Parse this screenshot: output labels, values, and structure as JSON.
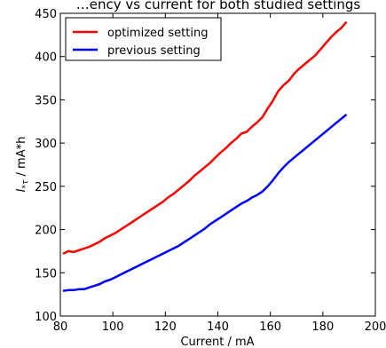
{
  "chart_data": {
    "type": "line",
    "title": "…ency vs current for both studied settings",
    "xlabel": "Current / mA",
    "ylabel": "I",
    "ylabel_subscript": "*τ",
    "ylabel_unit": " / mA*h",
    "xlim": [
      80,
      200
    ],
    "ylim": [
      100,
      450
    ],
    "xticks": [
      80,
      100,
      120,
      140,
      160,
      180,
      200
    ],
    "yticks": [
      100,
      150,
      200,
      250,
      300,
      350,
      400,
      450
    ],
    "legend_position": "top-left",
    "grid": false,
    "series": [
      {
        "name": "optimized setting",
        "color": "#ff0000",
        "x": [
          81,
          83,
          85,
          87,
          89,
          91,
          93,
          95,
          97,
          99,
          101,
          103,
          105,
          107,
          109,
          111,
          113,
          115,
          117,
          119,
          121,
          123,
          125,
          127,
          129,
          131,
          133,
          135,
          137,
          139,
          141,
          143,
          145,
          147,
          149,
          151,
          153,
          155,
          157,
          159,
          161,
          163,
          165,
          167,
          169,
          171,
          173,
          175,
          177,
          179,
          181,
          183,
          185,
          187,
          189
        ],
        "values": [
          172,
          175,
          174,
          176,
          178,
          180,
          183,
          186,
          190,
          193,
          196,
          200,
          204,
          208,
          212,
          216,
          220,
          224,
          228,
          232,
          237,
          241,
          246,
          251,
          256,
          262,
          267,
          272,
          277,
          283,
          289,
          294,
          300,
          305,
          311,
          313,
          319,
          324,
          330,
          340,
          349,
          360,
          367,
          372,
          380,
          386,
          391,
          396,
          401,
          408,
          415,
          422,
          428,
          433,
          440
        ]
      },
      {
        "name": "previous setting",
        "color": "#0000ff",
        "x": [
          81,
          83,
          85,
          87,
          89,
          91,
          93,
          95,
          97,
          99,
          101,
          103,
          105,
          107,
          109,
          111,
          113,
          115,
          117,
          119,
          121,
          123,
          125,
          127,
          129,
          131,
          133,
          135,
          137,
          139,
          141,
          143,
          145,
          147,
          149,
          151,
          153,
          155,
          157,
          159,
          161,
          163,
          165,
          167,
          169,
          171,
          173,
          175,
          177,
          179,
          181,
          183,
          185,
          187,
          189
        ],
        "values": [
          129,
          130,
          130,
          131,
          131,
          133,
          135,
          137,
          140,
          142,
          145,
          148,
          151,
          154,
          157,
          160,
          163,
          166,
          169,
          172,
          175,
          178,
          181,
          185,
          189,
          193,
          197,
          201,
          206,
          210,
          214,
          218,
          222,
          226,
          230,
          233,
          237,
          240,
          244,
          250,
          257,
          265,
          272,
          278,
          283,
          288,
          293,
          298,
          303,
          308,
          313,
          318,
          323,
          328,
          333
        ]
      }
    ]
  }
}
